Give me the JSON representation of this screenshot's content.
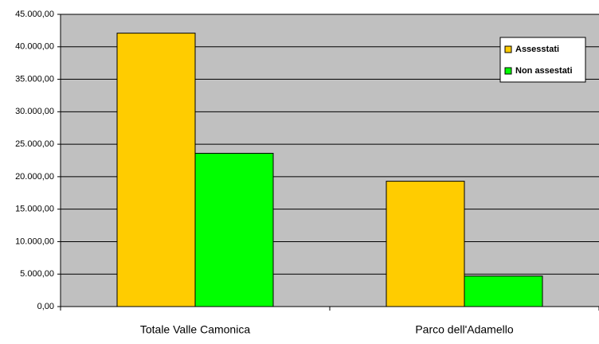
{
  "chart_data": {
    "type": "bar",
    "categories": [
      "Totale Valle Camonica",
      "Parco dell'Adamello"
    ],
    "series": [
      {
        "name": "Assesstati",
        "color": "#ffcc00",
        "values": [
          42100,
          19300
        ]
      },
      {
        "name": "Non assestati",
        "color": "#00ff00",
        "values": [
          23600,
          4700
        ]
      }
    ],
    "ylim": [
      0,
      45000
    ],
    "yticks": [
      {
        "value": 0,
        "label": "0,00"
      },
      {
        "value": 5000,
        "label": "5.000,00"
      },
      {
        "value": 10000,
        "label": "10.000,00"
      },
      {
        "value": 15000,
        "label": "15.000,00"
      },
      {
        "value": 20000,
        "label": "20.000,00"
      },
      {
        "value": 25000,
        "label": "25.000,00"
      },
      {
        "value": 30000,
        "label": "30.000,00"
      },
      {
        "value": 35000,
        "label": "35.000,00"
      },
      {
        "value": 40000,
        "label": "40.000,00"
      },
      {
        "value": 45000,
        "label": "45.000,00"
      }
    ],
    "grid": true,
    "legend": "upper right"
  }
}
